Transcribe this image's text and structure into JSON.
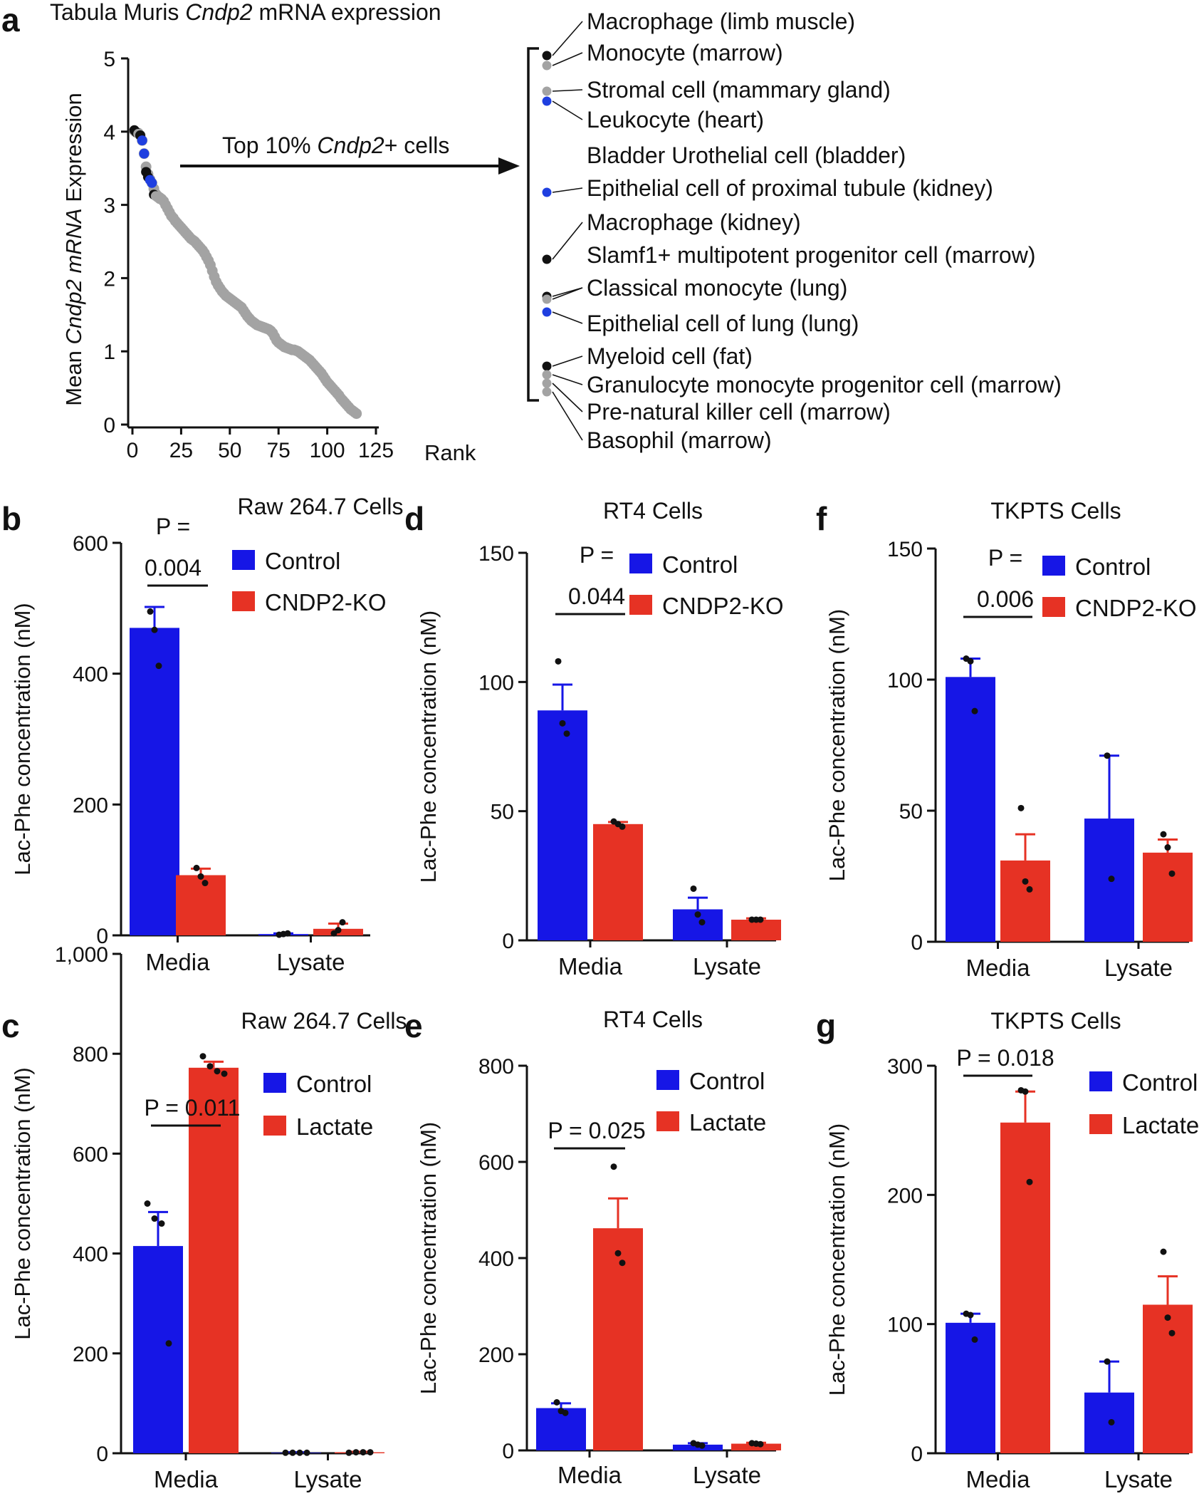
{
  "colors": {
    "control": "#1616e6",
    "treatment": "#e63224",
    "gray": "#a3a3a3",
    "black": "#111111",
    "blue": "#1f3fe0"
  },
  "panel_a": {
    "letter": "a",
    "title": "Tabula Muris Cndp2 mRNA expression",
    "ylabel": "Mean Cndp2 mRNA Expression",
    "xlabel_end": "Rank",
    "arrow_label": "Top 10% Cndp2+ cells",
    "x_ticks": [
      "0",
      "25",
      "50",
      "75",
      "100",
      "125"
    ],
    "y_ticks": [
      "0",
      "1",
      "2",
      "3",
      "4",
      "5"
    ],
    "cell_types": [
      "Macrophage (limb muscle)",
      "Monocyte (marrow)",
      "Stromal cell (mammary gland)",
      "Leukocyte (heart)",
      "Bladder Urothelial cell (bladder)",
      "Epithelial cell of proximal tubule (kidney)",
      "Macrophage (kidney)",
      "Slamf1+ multipotent progenitor cell (marrow)",
      "Classical monocyte (lung)",
      "Epithelial cell of lung (lung)",
      "Myeloid cell (fat)",
      "Granulocyte monocyte progenitor cell (marrow)",
      "Pre-natural killer cell (marrow)",
      "Basophil (marrow)"
    ]
  },
  "chart_data": [
    {
      "id": "a",
      "type": "scatter",
      "title": "Tabula Muris Cndp2 mRNA expression",
      "xlabel": "Rank",
      "ylabel": "Mean Cndp2 mRNA Expression",
      "xlim": [
        0,
        125
      ],
      "ylim": [
        0,
        5
      ],
      "curve_points": [
        [
          1,
          4.01
        ],
        [
          2,
          3.99
        ],
        [
          3,
          3.98
        ],
        [
          4,
          3.95
        ],
        [
          5,
          3.88
        ],
        [
          6,
          3.7
        ],
        [
          7,
          3.52
        ],
        [
          8,
          3.42
        ],
        [
          9,
          3.35
        ],
        [
          10,
          3.3
        ],
        [
          11,
          3.22
        ],
        [
          12,
          3.15
        ],
        [
          13,
          3.12
        ],
        [
          14,
          3.1
        ],
        [
          15,
          3.08
        ],
        [
          16,
          3.05
        ],
        [
          17,
          3.0
        ],
        [
          18,
          2.95
        ],
        [
          19,
          2.9
        ],
        [
          20,
          2.85
        ],
        [
          21,
          2.82
        ],
        [
          22,
          2.78
        ],
        [
          23,
          2.75
        ],
        [
          24,
          2.72
        ],
        [
          25,
          2.69
        ],
        [
          26,
          2.66
        ],
        [
          27,
          2.63
        ],
        [
          28,
          2.6
        ],
        [
          29,
          2.57
        ],
        [
          30,
          2.54
        ],
        [
          31,
          2.52
        ],
        [
          32,
          2.5
        ],
        [
          33,
          2.47
        ],
        [
          34,
          2.44
        ],
        [
          35,
          2.41
        ],
        [
          36,
          2.38
        ],
        [
          37,
          2.34
        ],
        [
          38,
          2.29
        ],
        [
          39,
          2.24
        ],
        [
          40,
          2.18
        ],
        [
          41,
          2.1
        ],
        [
          42,
          2.02
        ],
        [
          43,
          1.95
        ],
        [
          44,
          1.9
        ],
        [
          45,
          1.86
        ],
        [
          46,
          1.82
        ],
        [
          47,
          1.79
        ],
        [
          48,
          1.76
        ],
        [
          49,
          1.74
        ],
        [
          50,
          1.72
        ],
        [
          51,
          1.7
        ],
        [
          52,
          1.68
        ],
        [
          53,
          1.66
        ],
        [
          54,
          1.64
        ],
        [
          55,
          1.62
        ],
        [
          56,
          1.6
        ],
        [
          57,
          1.56
        ],
        [
          58,
          1.52
        ],
        [
          59,
          1.48
        ],
        [
          60,
          1.45
        ],
        [
          61,
          1.42
        ],
        [
          62,
          1.4
        ],
        [
          63,
          1.38
        ],
        [
          64,
          1.36
        ],
        [
          65,
          1.35
        ],
        [
          66,
          1.34
        ],
        [
          67,
          1.33
        ],
        [
          68,
          1.32
        ],
        [
          69,
          1.31
        ],
        [
          70,
          1.3
        ],
        [
          71,
          1.28
        ],
        [
          72,
          1.25
        ],
        [
          73,
          1.2
        ],
        [
          74,
          1.15
        ],
        [
          75,
          1.12
        ],
        [
          76,
          1.1
        ],
        [
          77,
          1.08
        ],
        [
          78,
          1.06
        ],
        [
          79,
          1.05
        ],
        [
          80,
          1.04
        ],
        [
          81,
          1.03
        ],
        [
          82,
          1.02
        ],
        [
          83,
          1.02
        ],
        [
          84,
          1.01
        ],
        [
          85,
          1.0
        ],
        [
          86,
          0.98
        ],
        [
          87,
          0.96
        ],
        [
          88,
          0.94
        ],
        [
          89,
          0.92
        ],
        [
          90,
          0.9
        ],
        [
          91,
          0.88
        ],
        [
          92,
          0.85
        ],
        [
          93,
          0.82
        ],
        [
          94,
          0.79
        ],
        [
          95,
          0.76
        ],
        [
          96,
          0.73
        ],
        [
          97,
          0.7
        ],
        [
          98,
          0.66
        ],
        [
          99,
          0.62
        ],
        [
          100,
          0.58
        ],
        [
          101,
          0.55
        ],
        [
          102,
          0.52
        ],
        [
          103,
          0.49
        ],
        [
          104,
          0.46
        ],
        [
          105,
          0.43
        ],
        [
          106,
          0.4
        ],
        [
          107,
          0.36
        ],
        [
          108,
          0.33
        ],
        [
          109,
          0.3
        ],
        [
          110,
          0.27
        ],
        [
          111,
          0.24
        ],
        [
          112,
          0.21
        ],
        [
          113,
          0.19
        ],
        [
          114,
          0.17
        ],
        [
          115,
          0.15
        ]
      ],
      "highlight_points": [
        {
          "rank": 1,
          "value": 4.02,
          "color": "black"
        },
        {
          "rank": 2,
          "value": 3.99,
          "color": "black"
        },
        {
          "rank": 3,
          "value": 3.97,
          "color": "gray"
        },
        {
          "rank": 4,
          "value": 3.95,
          "color": "black"
        },
        {
          "rank": 5,
          "value": 3.88,
          "color": "blue"
        },
        {
          "rank": 6,
          "value": 3.7,
          "color": "blue"
        },
        {
          "rank": 7,
          "value": 3.45,
          "color": "black"
        },
        {
          "rank": 8,
          "value": 3.38,
          "color": "black"
        },
        {
          "rank": 9,
          "value": 3.34,
          "color": "blue"
        },
        {
          "rank": 10,
          "value": 3.3,
          "color": "blue"
        },
        {
          "rank": 11,
          "value": 3.14,
          "color": "black"
        },
        {
          "rank": 12,
          "value": 3.12,
          "color": "gray"
        },
        {
          "rank": 13,
          "value": 3.1,
          "color": "gray"
        },
        {
          "rank": 14,
          "value": 3.08,
          "color": "gray"
        }
      ],
      "bracket_markers": [
        {
          "color": "black",
          "label_index": 0
        },
        {
          "color": "gray",
          "label_index": 1
        },
        {
          "color": "gray",
          "label_index": 2
        },
        {
          "color": "blue",
          "label_index": 3
        },
        {
          "color": "blue",
          "label_index": 5
        },
        {
          "color": "black",
          "label_index": 6
        },
        {
          "color": "black",
          "label_index": 8
        },
        {
          "color": "gray",
          "label_index": 8
        },
        {
          "color": "blue",
          "label_index": 9
        },
        {
          "color": "black",
          "label_index": 10
        },
        {
          "color": "gray",
          "label_index": 11
        },
        {
          "color": "gray",
          "label_index": 12
        },
        {
          "color": "gray",
          "label_index": 13
        }
      ]
    },
    {
      "id": "b",
      "type": "bar",
      "title": "Raw 264.7 Cells",
      "ylabel": "Lac-Phe concentration (nM)",
      "categories": [
        "Media",
        "Lysate"
      ],
      "ylim": [
        0,
        600
      ],
      "yticks": [
        "0",
        "200",
        "400",
        "600"
      ],
      "series": [
        {
          "name": "Control",
          "color": "control",
          "values": [
            470,
            2
          ],
          "errors": [
            32,
            1
          ],
          "points": [
            [
              490,
              505
            ],
            [
              470,
              467
            ],
            [
              412,
              415
            ]
          ]
        },
        {
          "name": "CNDP2-KO",
          "color": "treatment",
          "values": [
            92,
            10
          ],
          "errors": [
            10,
            8
          ],
          "points": [
            [
              102,
              103
            ],
            [
              92,
              90
            ],
            [
              80,
              83
            ]
          ]
        }
      ],
      "replicates": {
        "Media": [
          [
            495,
            467,
            412
          ],
          [
            103,
            90,
            80
          ]
        ],
        "Lysate": [
          [
            1,
            2,
            3
          ],
          [
            3,
            8,
            20
          ]
        ]
      },
      "pvalue": {
        "text": [
          "P =",
          "0.004"
        ],
        "bracket": "Media"
      }
    },
    {
      "id": "c",
      "type": "bar",
      "title": "Raw 264.7 Cells",
      "ylabel": "Lac-Phe concentration (nM)",
      "categories": [
        "Media",
        "Lysate"
      ],
      "ylim": [
        0,
        1000
      ],
      "yticks": [
        "0",
        "200",
        "400",
        "600",
        "800",
        "1,000"
      ],
      "series": [
        {
          "name": "Control",
          "color": "control",
          "values": [
            415,
            1
          ],
          "errors": [
            68,
            1
          ]
        },
        {
          "name": "Lactate",
          "color": "treatment",
          "values": [
            772,
            2
          ],
          "errors": [
            12,
            1
          ]
        }
      ],
      "replicates": {
        "Media": [
          [
            500,
            470,
            460,
            220
          ],
          [
            795,
            775,
            765,
            760
          ]
        ],
        "Lysate": [
          [
            1,
            1,
            1,
            1
          ],
          [
            1,
            2,
            2,
            2
          ]
        ]
      },
      "pvalue": {
        "text": [
          "P = 0.011"
        ],
        "bracket": "Media"
      }
    },
    {
      "id": "d",
      "type": "bar",
      "title": "RT4 Cells",
      "ylabel": "Lac-Phe concentration (nM)",
      "categories": [
        "Media",
        "Lysate"
      ],
      "ylim": [
        0,
        150
      ],
      "yticks": [
        "0",
        "50",
        "100",
        "150"
      ],
      "series": [
        {
          "name": "Control",
          "color": "control",
          "values": [
            89,
            12
          ],
          "errors": [
            10,
            4.5
          ]
        },
        {
          "name": "CNDP2-KO",
          "color": "treatment",
          "values": [
            45,
            8
          ],
          "errors": [
            0.8,
            0.5
          ]
        }
      ],
      "replicates": {
        "Media": [
          [
            108,
            84,
            80
          ],
          [
            46,
            45,
            44
          ]
        ],
        "Lysate": [
          [
            20,
            10,
            7
          ],
          [
            8,
            8,
            8
          ]
        ]
      },
      "pvalue": {
        "text": [
          "P =",
          "0.044"
        ],
        "bracket": "Media"
      }
    },
    {
      "id": "e",
      "type": "bar",
      "title": "RT4 Cells",
      "ylabel": "Lac-Phe concentration (nM)",
      "categories": [
        "Media",
        "Lysate"
      ],
      "ylim": [
        0,
        800
      ],
      "yticks": [
        "0",
        "200",
        "400",
        "600",
        "800"
      ],
      "series": [
        {
          "name": "Control",
          "color": "control",
          "values": [
            88,
            12
          ],
          "errors": [
            10,
            3
          ]
        },
        {
          "name": "Lactate",
          "color": "treatment",
          "values": [
            462,
            14
          ],
          "errors": [
            62,
            2
          ]
        }
      ],
      "replicates": {
        "Media": [
          [
            100,
            82,
            78
          ],
          [
            590,
            410,
            390
          ]
        ],
        "Lysate": [
          [
            15,
            12,
            10
          ],
          [
            15,
            14,
            13
          ]
        ]
      },
      "pvalue": {
        "text": [
          "P = 0.025"
        ],
        "bracket": "Media"
      }
    },
    {
      "id": "f",
      "type": "bar",
      "title": "TKPTS Cells",
      "ylabel": "Lac-Phe concentration (nM)",
      "categories": [
        "Media",
        "Lysate"
      ],
      "ylim": [
        0,
        150
      ],
      "yticks": [
        "0",
        "50",
        "100",
        "150"
      ],
      "series": [
        {
          "name": "Control",
          "color": "control",
          "values": [
            101,
            47
          ],
          "errors": [
            7,
            24
          ]
        },
        {
          "name": "CNDP2-KO",
          "color": "treatment",
          "values": [
            31,
            34
          ],
          "errors": [
            10,
            5
          ]
        }
      ],
      "replicates": {
        "Media": [
          [
            108,
            107,
            88
          ],
          [
            51,
            23,
            20
          ]
        ],
        "Lysate": [
          [
            71,
            24
          ],
          [
            41,
            36,
            26
          ]
        ]
      },
      "pvalue": {
        "text": [
          "P =",
          "0.006"
        ],
        "bracket": "Media"
      }
    },
    {
      "id": "g",
      "type": "bar",
      "title": "TKPTS Cells",
      "ylabel": "Lac-Phe concentration (nM)",
      "categories": [
        "Media",
        "Lysate"
      ],
      "ylim": [
        0,
        300
      ],
      "yticks": [
        "0",
        "100",
        "200",
        "300"
      ],
      "series": [
        {
          "name": "Control",
          "color": "control",
          "values": [
            101,
            47
          ],
          "errors": [
            7,
            24
          ]
        },
        {
          "name": "Lactate",
          "color": "treatment",
          "values": [
            256,
            115
          ],
          "errors": [
            24,
            22
          ]
        }
      ],
      "replicates": {
        "Media": [
          [
            108,
            107,
            88
          ],
          [
            281,
            280,
            210
          ]
        ],
        "Lysate": [
          [
            71,
            24
          ],
          [
            156,
            105,
            93
          ]
        ]
      },
      "pvalue": {
        "text": [
          "P = 0.018"
        ],
        "bracket": "Media"
      }
    }
  ]
}
